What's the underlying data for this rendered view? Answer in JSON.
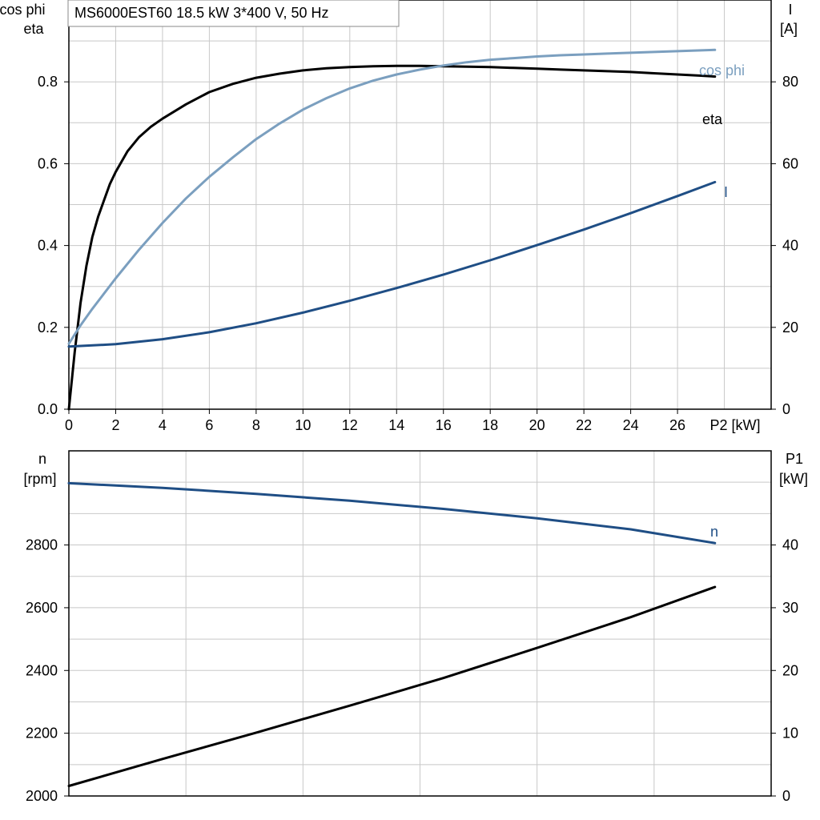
{
  "title": "MS6000EST60   18.5 kW   3*400 V, 50 Hz",
  "colors": {
    "eta": "#000000",
    "cos_phi": "#7b9fbf",
    "I": "#1f4e85",
    "n": "#1f4e85",
    "P1": "#000000",
    "grid": "#c8c8c8"
  },
  "chart_data": [
    {
      "type": "line",
      "xlabel": "P2 [kW]",
      "x_ticks": [
        "0",
        "2",
        "4",
        "6",
        "8",
        "10",
        "12",
        "14",
        "16",
        "18",
        "20",
        "22",
        "24",
        "26"
      ],
      "xlim": [
        0,
        30
      ],
      "left_axis": {
        "label_lines": [
          "cos phi",
          "eta"
        ],
        "ticks": [
          "0.0",
          "0.2",
          "0.4",
          "0.6",
          "0.8"
        ],
        "ylim": [
          0,
          1.0
        ]
      },
      "right_axis": {
        "label_lines": [
          "I",
          "[A]"
        ],
        "ticks": [
          "0",
          "20",
          "40",
          "60",
          "80"
        ],
        "ylim": [
          0,
          100
        ]
      },
      "series": [
        {
          "name": "eta",
          "axis": "left",
          "x": [
            0,
            0.25,
            0.5,
            0.75,
            1,
            1.25,
            1.5,
            1.75,
            2,
            2.5,
            3,
            3.5,
            4,
            5,
            6,
            7,
            8,
            9,
            10,
            11,
            12,
            13,
            14,
            15,
            16,
            17,
            18,
            19,
            20,
            21,
            22,
            23,
            24,
            25,
            26,
            27,
            27.6
          ],
          "y": [
            0.0,
            0.14,
            0.26,
            0.35,
            0.42,
            0.47,
            0.51,
            0.55,
            0.58,
            0.63,
            0.665,
            0.69,
            0.71,
            0.745,
            0.775,
            0.795,
            0.81,
            0.82,
            0.828,
            0.833,
            0.836,
            0.838,
            0.839,
            0.839,
            0.838,
            0.837,
            0.836,
            0.834,
            0.832,
            0.83,
            0.828,
            0.826,
            0.824,
            0.821,
            0.818,
            0.815,
            0.813
          ]
        },
        {
          "name": "cos phi",
          "axis": "left",
          "x": [
            0,
            0.5,
            1,
            2,
            3,
            4,
            5,
            6,
            7,
            8,
            9,
            10,
            11,
            12,
            13,
            14,
            15,
            16,
            17,
            18,
            19,
            20,
            21,
            22,
            23,
            24,
            25,
            26,
            27,
            27.6
          ],
          "y": [
            0.16,
            0.205,
            0.245,
            0.32,
            0.39,
            0.455,
            0.515,
            0.568,
            0.615,
            0.66,
            0.698,
            0.732,
            0.76,
            0.784,
            0.803,
            0.818,
            0.83,
            0.84,
            0.848,
            0.854,
            0.858,
            0.862,
            0.865,
            0.867,
            0.869,
            0.871,
            0.873,
            0.875,
            0.877,
            0.878
          ]
        },
        {
          "name": "I",
          "axis": "right",
          "x": [
            0,
            2,
            4,
            6,
            8,
            10,
            12,
            14,
            16,
            18,
            20,
            22,
            24,
            26,
            27.6
          ],
          "y": [
            15.3,
            15.9,
            17.1,
            18.8,
            21.0,
            23.6,
            26.5,
            29.6,
            32.9,
            36.4,
            40.1,
            43.9,
            47.9,
            52.1,
            55.5
          ]
        }
      ]
    },
    {
      "type": "line",
      "xlim": [
        0,
        30
      ],
      "left_axis": {
        "label_lines": [
          "n",
          "[rpm]"
        ],
        "ticks": [
          "2000",
          "2200",
          "2400",
          "2600",
          "2800"
        ],
        "ylim": [
          2000,
          3100
        ]
      },
      "right_axis": {
        "label_lines": [
          "P1",
          "[kW]"
        ],
        "ticks": [
          "0",
          "10",
          "20",
          "30",
          "40"
        ],
        "ylim": [
          0,
          55
        ]
      },
      "series": [
        {
          "name": "n",
          "axis": "left",
          "x": [
            0,
            4,
            8,
            12,
            16,
            20,
            24,
            27.6
          ],
          "y": [
            2997,
            2982,
            2963,
            2941,
            2915,
            2885,
            2850,
            2806
          ]
        },
        {
          "name": "P1",
          "axis": "right",
          "x": [
            0,
            4,
            8,
            12,
            16,
            20,
            24,
            27.6
          ],
          "y": [
            1.6,
            5.9,
            10.1,
            14.4,
            18.8,
            23.6,
            28.5,
            33.3
          ]
        }
      ]
    }
  ]
}
